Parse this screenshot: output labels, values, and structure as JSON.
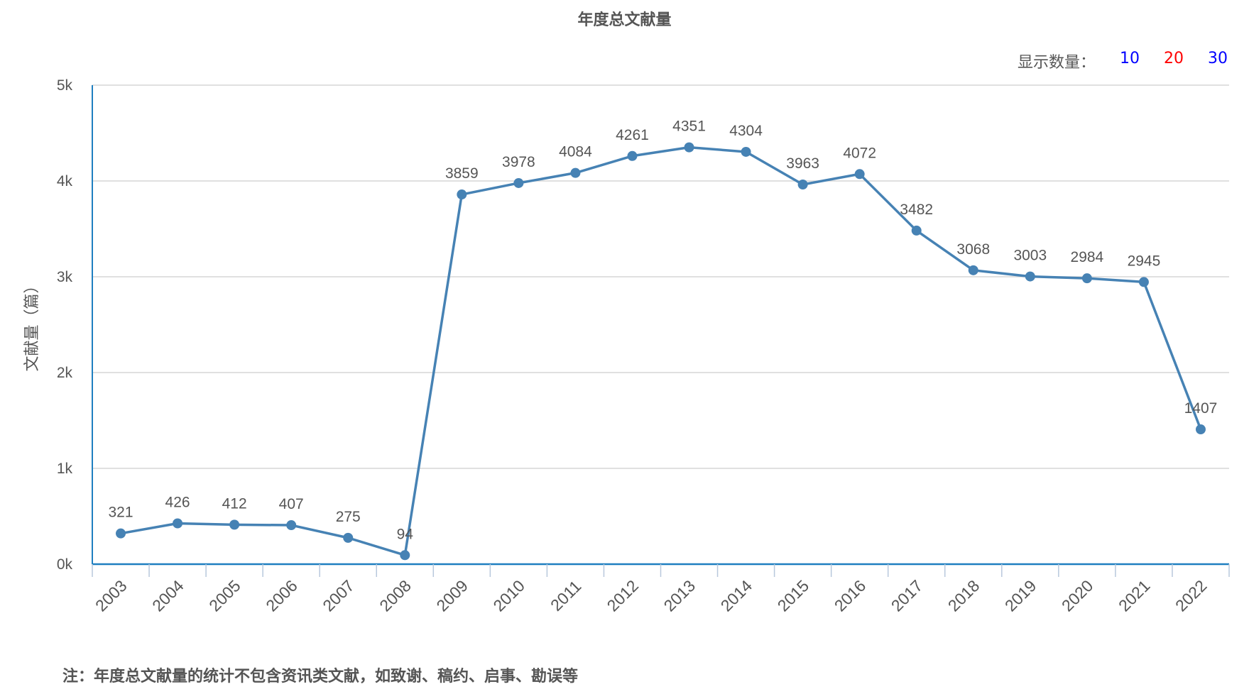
{
  "title": "年度总文献量",
  "display_count": {
    "label": "显示数量：",
    "options": [
      {
        "label": "10",
        "color": "#0000ff"
      },
      {
        "label": "20",
        "color": "#ff0000"
      },
      {
        "label": "30",
        "color": "#0000ff"
      }
    ]
  },
  "note": "注：年度总文献量的统计不包含资讯类文献，如致谢、稿约、启事、勘误等",
  "chart_data": {
    "type": "line",
    "title": "年度总文献量",
    "xlabel": "",
    "ylabel": "文献量（篇）",
    "ylim": [
      0,
      5000
    ],
    "yticks": [
      "0k",
      "1k",
      "2k",
      "3k",
      "4k",
      "5k"
    ],
    "grid": true,
    "series_color": "#4682b4",
    "categories": [
      "2003",
      "2004",
      "2005",
      "2006",
      "2007",
      "2008",
      "2009",
      "2010",
      "2011",
      "2012",
      "2013",
      "2014",
      "2015",
      "2016",
      "2017",
      "2018",
      "2019",
      "2020",
      "2021",
      "2022"
    ],
    "values": [
      321,
      426,
      412,
      407,
      275,
      94,
      3859,
      3978,
      4084,
      4261,
      4351,
      4304,
      3963,
      4072,
      3482,
      3068,
      3003,
      2984,
      2945,
      1407
    ]
  }
}
